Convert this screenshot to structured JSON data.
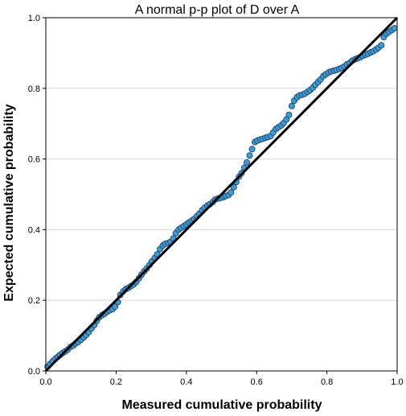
{
  "chart_data": {
    "type": "scatter",
    "title": "A normal p-p plot of D over A",
    "xlabel": "Measured cumulative probability",
    "ylabel": "Expected cumulative probability",
    "xlim": [
      0.0,
      1.0
    ],
    "ylim": [
      0.0,
      1.0
    ],
    "x_ticks": [
      "0.0",
      "0.2",
      "0.4",
      "0.6",
      "0.8",
      "1.0"
    ],
    "y_ticks": [
      "0.0",
      "0.2",
      "0.4",
      "0.6",
      "0.8",
      "1.0"
    ],
    "grid": "horizontal",
    "reference_line": {
      "from": [
        0.0,
        0.0
      ],
      "to": [
        1.0,
        1.0
      ]
    },
    "point_color": "#3b9bd6",
    "point_edge_color": "#1f3a5a",
    "series": [
      {
        "x": [
          0.005,
          0.012,
          0.02,
          0.028,
          0.034,
          0.04,
          0.047,
          0.055,
          0.062,
          0.07,
          0.078,
          0.085,
          0.092,
          0.1,
          0.108,
          0.115,
          0.122,
          0.13,
          0.138,
          0.145,
          0.152,
          0.16,
          0.167,
          0.175,
          0.182,
          0.19,
          0.197,
          0.205,
          0.212,
          0.22,
          0.228,
          0.235,
          0.242,
          0.25,
          0.257,
          0.265,
          0.272,
          0.28,
          0.287,
          0.295,
          0.302,
          0.31,
          0.317,
          0.325,
          0.333,
          0.34,
          0.348,
          0.355,
          0.363,
          0.37,
          0.378,
          0.385,
          0.393,
          0.4,
          0.407,
          0.415,
          0.422,
          0.43,
          0.437,
          0.445,
          0.452,
          0.46,
          0.467,
          0.475,
          0.482,
          0.49,
          0.497,
          0.505,
          0.512,
          0.52,
          0.527,
          0.535,
          0.542,
          0.55,
          0.557,
          0.565,
          0.572,
          0.58,
          0.587,
          0.595,
          0.602,
          0.61,
          0.617,
          0.625,
          0.632,
          0.64,
          0.647,
          0.655,
          0.662,
          0.67,
          0.677,
          0.685,
          0.692,
          0.7,
          0.707,
          0.715,
          0.722,
          0.73,
          0.737,
          0.745,
          0.752,
          0.76,
          0.767,
          0.775,
          0.782,
          0.79,
          0.797,
          0.805,
          0.812,
          0.82,
          0.827,
          0.835,
          0.842,
          0.85,
          0.857,
          0.865,
          0.872,
          0.88,
          0.887,
          0.895,
          0.902,
          0.91,
          0.917,
          0.925,
          0.932,
          0.94,
          0.947,
          0.955,
          0.962,
          0.97,
          0.977,
          0.985,
          0.992
        ],
        "y": [
          0.012,
          0.02,
          0.028,
          0.035,
          0.04,
          0.045,
          0.05,
          0.055,
          0.06,
          0.068,
          0.072,
          0.078,
          0.082,
          0.088,
          0.095,
          0.102,
          0.11,
          0.12,
          0.13,
          0.142,
          0.152,
          0.158,
          0.162,
          0.168,
          0.172,
          0.175,
          0.182,
          0.195,
          0.215,
          0.225,
          0.232,
          0.235,
          0.24,
          0.245,
          0.252,
          0.262,
          0.272,
          0.282,
          0.29,
          0.3,
          0.31,
          0.32,
          0.33,
          0.345,
          0.355,
          0.36,
          0.362,
          0.365,
          0.375,
          0.39,
          0.4,
          0.405,
          0.41,
          0.415,
          0.42,
          0.425,
          0.43,
          0.438,
          0.445,
          0.455,
          0.462,
          0.468,
          0.472,
          0.478,
          0.485,
          0.488,
          0.49,
          0.492,
          0.495,
          0.498,
          0.505,
          0.52,
          0.535,
          0.55,
          0.56,
          0.575,
          0.59,
          0.61,
          0.628,
          0.648,
          0.652,
          0.655,
          0.657,
          0.66,
          0.662,
          0.665,
          0.675,
          0.685,
          0.69,
          0.695,
          0.702,
          0.712,
          0.725,
          0.75,
          0.765,
          0.775,
          0.78,
          0.782,
          0.785,
          0.79,
          0.795,
          0.802,
          0.81,
          0.818,
          0.825,
          0.835,
          0.84,
          0.845,
          0.848,
          0.85,
          0.852,
          0.855,
          0.858,
          0.862,
          0.868,
          0.872,
          0.878,
          0.882,
          0.885,
          0.888,
          0.892,
          0.895,
          0.898,
          0.902,
          0.905,
          0.91,
          0.915,
          0.922,
          0.945,
          0.955,
          0.96,
          0.965,
          0.97
        ]
      }
    ]
  }
}
